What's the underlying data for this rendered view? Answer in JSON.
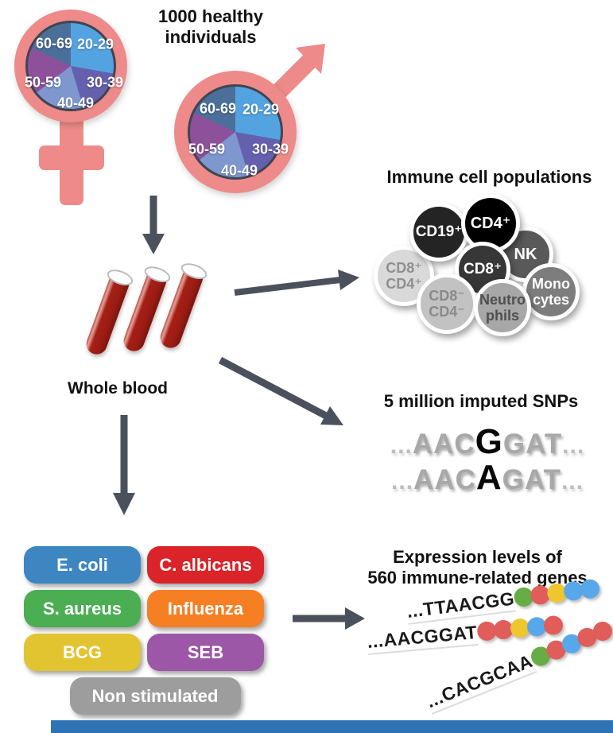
{
  "header": {
    "title_line1": "1000 healthy",
    "title_line2": "individuals"
  },
  "demographics": {
    "age_groups": [
      "20-29",
      "30-39",
      "40-49",
      "50-59",
      "60-69"
    ],
    "pie_colors": {
      "20-29": "#54a3e1",
      "30-39": "#6560ae",
      "40-49": "#7e97cf",
      "50-59": "#8d519c",
      "60-69": "#4b6f99"
    },
    "symbol_color": "#ee8a8a"
  },
  "whole_blood": {
    "label": "Whole blood"
  },
  "immune_cells": {
    "title": "Immune cell populations",
    "cells": [
      {
        "name": "cd8pos-cd4pos",
        "line1": "CD8⁺",
        "line2": "CD4⁺",
        "color": "#d9d9d9"
      },
      {
        "name": "cd19pos",
        "line1": "CD19⁺",
        "line2": "",
        "color": "#242424"
      },
      {
        "name": "nk",
        "line1": "NK",
        "line2": "",
        "color": "#595959"
      },
      {
        "name": "cd4pos",
        "line1": "CD4⁺",
        "line2": "",
        "color": "#000000"
      },
      {
        "name": "monocytes",
        "line1": "Mono",
        "line2": "cytes",
        "color": "#7d7d7d"
      },
      {
        "name": "cd8pos",
        "line1": "CD8⁺",
        "line2": "",
        "color": "#373737"
      },
      {
        "name": "cd8neg-cd4neg",
        "line1": "CD8⁻",
        "line2": "CD4⁻",
        "color": "#c2c2c2"
      },
      {
        "name": "neutrophils",
        "line1": "Neutro",
        "line2": "phils",
        "color": "#a7a7a7"
      }
    ]
  },
  "snps": {
    "title": "5 million imputed SNPs",
    "ellipsis": "...",
    "lines": [
      {
        "left": "AAC",
        "variant": "G",
        "right": "GAT"
      },
      {
        "left": "AAC",
        "variant": "A",
        "right": "GAT"
      }
    ]
  },
  "stimuli": {
    "items": [
      {
        "label": "E. coli",
        "color": "#3d86c1"
      },
      {
        "label": "C. albicans",
        "color": "#da2429"
      },
      {
        "label": "S. aureus",
        "color": "#4cae52"
      },
      {
        "label": "Influenza",
        "color": "#f57f22"
      },
      {
        "label": "BCG",
        "color": "#e2c431"
      },
      {
        "label": "SEB",
        "color": "#9c57a6"
      },
      {
        "label": "Non stimulated",
        "color": "#9d9d9d"
      }
    ]
  },
  "expression": {
    "title_line1": "Expression levels of",
    "title_line2": "560 immune-related genes",
    "dot_colors": {
      "green": "#67ad45",
      "red": "#e15d5a",
      "yellow": "#eec62f",
      "blue": "#58a7ea"
    },
    "rows": [
      {
        "seq": "...TTAACGG",
        "dots": [
          "green",
          "red",
          "yellow",
          "blue",
          "blue"
        ]
      },
      {
        "seq": "...AACGGAT",
        "dots": [
          "red",
          "red",
          "yellow",
          "blue",
          "red"
        ]
      },
      {
        "seq": "...CACGCAA",
        "dots": [
          "green",
          "red",
          "blue",
          "red",
          "red"
        ]
      }
    ]
  },
  "misc": {
    "arrow_color": "#4a515d",
    "blood_red": "#a61f16",
    "bottom_bar_color": "#2d73b5"
  }
}
